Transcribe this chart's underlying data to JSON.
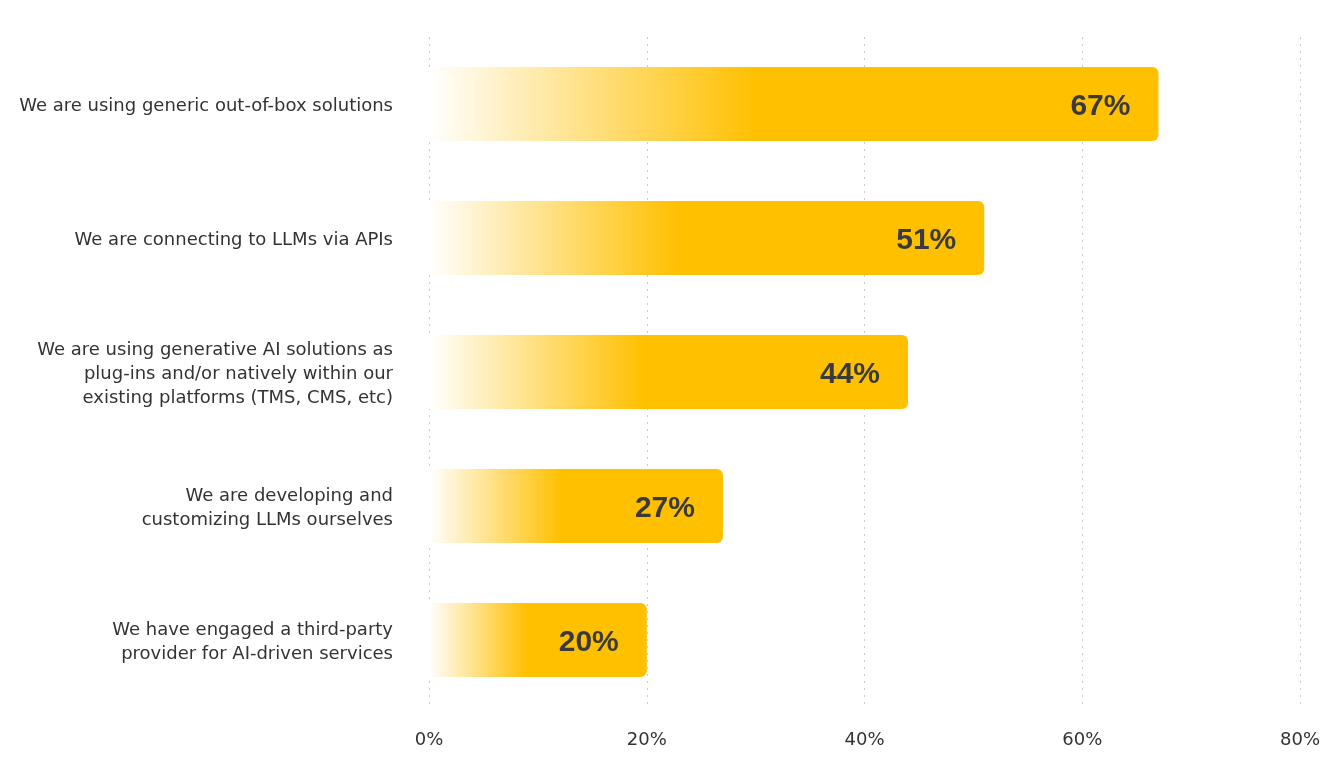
{
  "chart_data": {
    "type": "bar",
    "orientation": "horizontal",
    "categories": [
      "We are using generic out-of-box solutions",
      "We are connecting to LLMs via APIs",
      "We are using generative AI solutions as\nplug-ins and/or natively within our\nexisting platforms (TMS, CMS, etc)",
      "We are developing and\ncustomizing LLMs ourselves",
      "We have engaged a third-party\nprovider for AI-driven services"
    ],
    "values": [
      67,
      51,
      44,
      27,
      20
    ],
    "value_labels": [
      "67%",
      "51%",
      "44%",
      "27%",
      "20%"
    ],
    "color": "#ffc000",
    "xlim": [
      0,
      80
    ],
    "xticks": [
      {
        "value": 0,
        "label": "0%"
      },
      {
        "value": 20,
        "label": "20%"
      },
      {
        "value": 40,
        "label": "40%"
      },
      {
        "value": 60,
        "label": "60%"
      },
      {
        "value": 80,
        "label": "80%"
      }
    ],
    "grid": "x"
  }
}
